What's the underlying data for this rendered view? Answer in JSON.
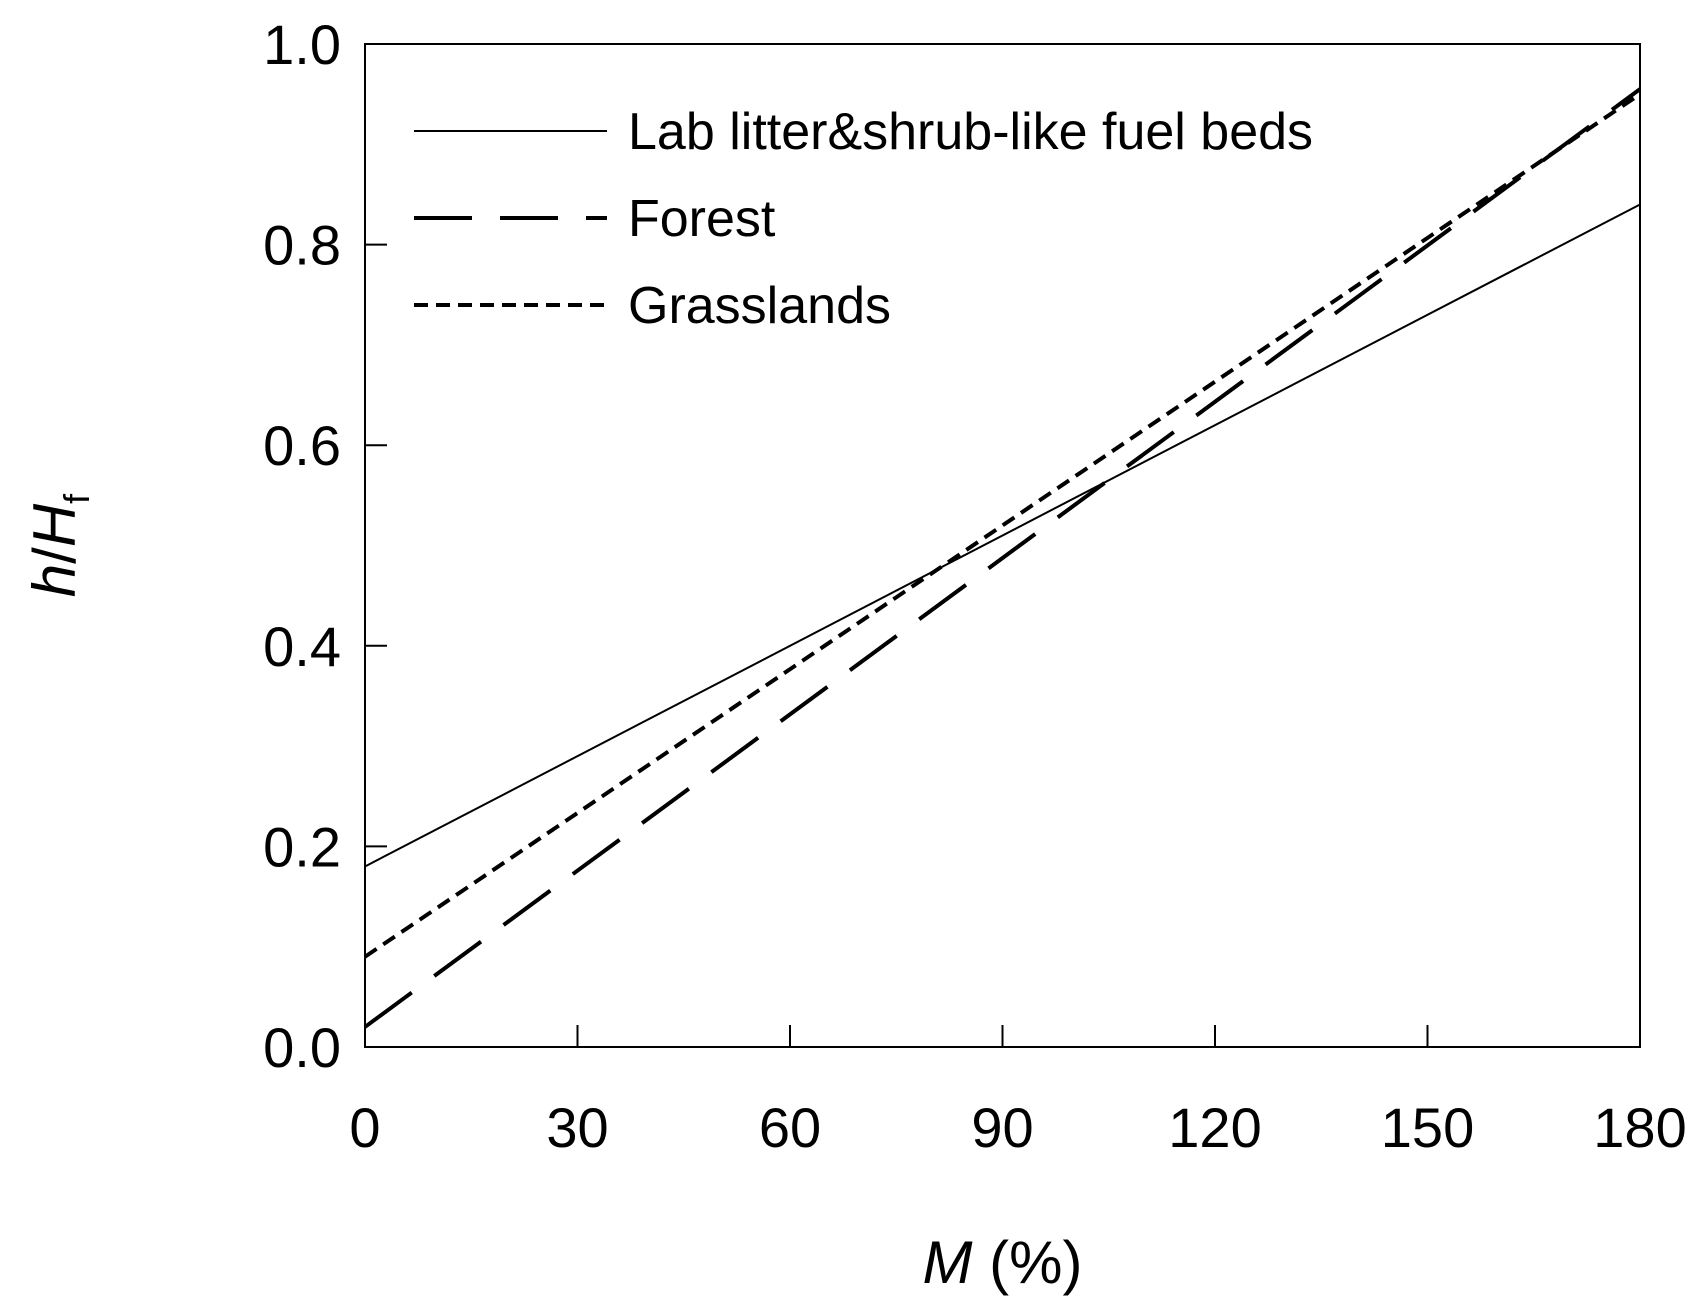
{
  "chart_data": {
    "type": "line",
    "title": "",
    "xlabel": {
      "main": "M",
      "unit": " (%)"
    },
    "ylabel": {
      "h": "h",
      "slash": "/",
      "H": "H",
      "sub": "f"
    },
    "xlim": [
      0,
      180
    ],
    "ylim": [
      0.0,
      1.0
    ],
    "x_ticks": [
      "0",
      "30",
      "60",
      "90",
      "120",
      "150",
      "180"
    ],
    "y_ticks": [
      "0.0",
      "0.2",
      "0.4",
      "0.6",
      "0.8",
      "1.0"
    ],
    "grid": false,
    "legend_position": "top-left",
    "series": [
      {
        "name": "Lab litter&shrub-like fuel beds",
        "style": "solid",
        "x": [
          0,
          180
        ],
        "y": [
          0.18,
          0.84
        ]
      },
      {
        "name": "Forest",
        "style": "long-dash",
        "x": [
          0,
          180
        ],
        "y": [
          0.02,
          0.955
        ]
      },
      {
        "name": "Grasslands",
        "style": "short-dash",
        "x": [
          0,
          180
        ],
        "y": [
          0.09,
          0.95
        ]
      }
    ]
  }
}
